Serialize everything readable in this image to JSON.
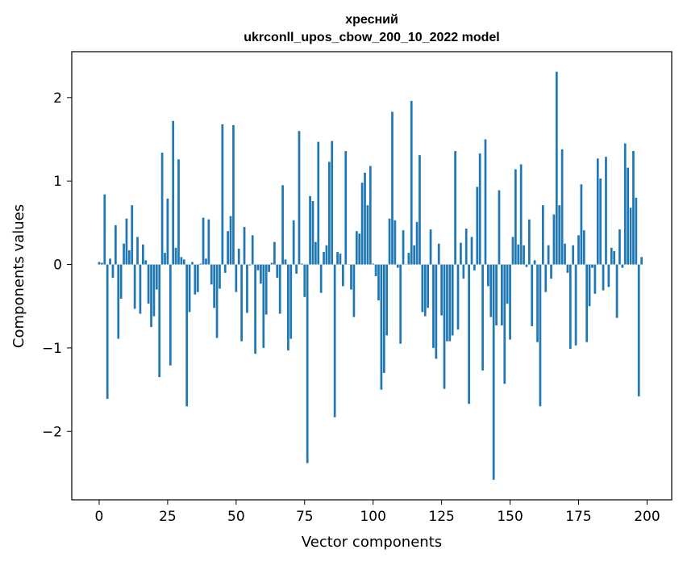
{
  "chart_data": {
    "type": "bar",
    "title": "хресний",
    "subtitle": "ukrconll_upos_cbow_200_10_2022 model",
    "xlabel": "Vector components",
    "ylabel": "Components values",
    "xlim": [
      -10,
      209
    ],
    "ylim": [
      -2.82,
      2.55
    ],
    "xticks": [
      0,
      25,
      50,
      75,
      100,
      125,
      150,
      175,
      200
    ],
    "yticks": [
      -2,
      -1,
      0,
      1,
      2
    ],
    "bar_color": "#1f77b4",
    "grid": false,
    "values": [
      0.03,
      0.02,
      0.84,
      -1.61,
      0.07,
      -0.16,
      0.47,
      -0.89,
      -0.41,
      0.25,
      0.55,
      0.17,
      0.71,
      -0.53,
      0.33,
      -0.59,
      0.24,
      0.05,
      -0.47,
      -0.75,
      -0.62,
      -0.3,
      -1.35,
      1.34,
      0.14,
      0.79,
      -1.21,
      1.72,
      0.2,
      1.26,
      0.09,
      0.06,
      -1.7,
      -0.57,
      0.03,
      -0.36,
      -0.33,
      0.01,
      0.56,
      0.07,
      0.54,
      -0.24,
      -0.52,
      -0.88,
      -0.29,
      1.68,
      -0.1,
      0.4,
      0.58,
      1.67,
      -0.33,
      0.19,
      -0.92,
      0.45,
      -0.58,
      -0.01,
      0.35,
      -1.07,
      -0.07,
      -0.23,
      -1.0,
      -0.6,
      -0.09,
      0.02,
      0.27,
      -0.16,
      -0.59,
      0.95,
      0.06,
      -1.03,
      -0.89,
      0.53,
      -0.11,
      1.6,
      0.01,
      -0.39,
      -2.38,
      0.82,
      0.76,
      0.27,
      1.47,
      -0.34,
      0.15,
      0.23,
      1.23,
      1.48,
      -1.83,
      0.15,
      0.13,
      -0.26,
      1.36,
      0.0,
      -0.3,
      -0.63,
      0.4,
      0.37,
      0.98,
      1.1,
      0.71,
      1.18,
      0.01,
      -0.14,
      -0.43,
      -1.5,
      -1.3,
      -0.85,
      0.55,
      1.83,
      0.53,
      -0.04,
      -0.95,
      0.41,
      0.0,
      0.14,
      1.96,
      0.23,
      0.51,
      1.31,
      -0.57,
      -0.62,
      -0.52,
      0.42,
      -1.0,
      -1.13,
      0.25,
      -0.61,
      -1.49,
      -0.92,
      -0.92,
      -0.85,
      1.36,
      -0.78,
      0.26,
      -0.17,
      0.43,
      -1.67,
      0.33,
      -0.07,
      0.93,
      1.33,
      -1.27,
      1.5,
      -0.26,
      -0.63,
      -2.58,
      -0.73,
      0.89,
      -0.73,
      -1.43,
      -0.47,
      -0.9,
      0.33,
      1.14,
      0.24,
      1.2,
      0.23,
      -0.03,
      0.54,
      -0.74,
      0.05,
      -0.93,
      -1.7,
      0.71,
      -0.33,
      0.23,
      -0.17,
      0.6,
      2.31,
      0.71,
      1.38,
      0.25,
      -0.1,
      -1.01,
      0.23,
      -0.97,
      0.35,
      0.96,
      0.41,
      -0.93,
      -0.5,
      -0.04,
      -0.35,
      1.27,
      1.03,
      -0.31,
      1.29,
      -0.27,
      0.2,
      0.16,
      -0.64,
      0.42,
      -0.04,
      1.45,
      1.16,
      0.68,
      1.36,
      0.8,
      -1.58,
      0.09
    ]
  }
}
